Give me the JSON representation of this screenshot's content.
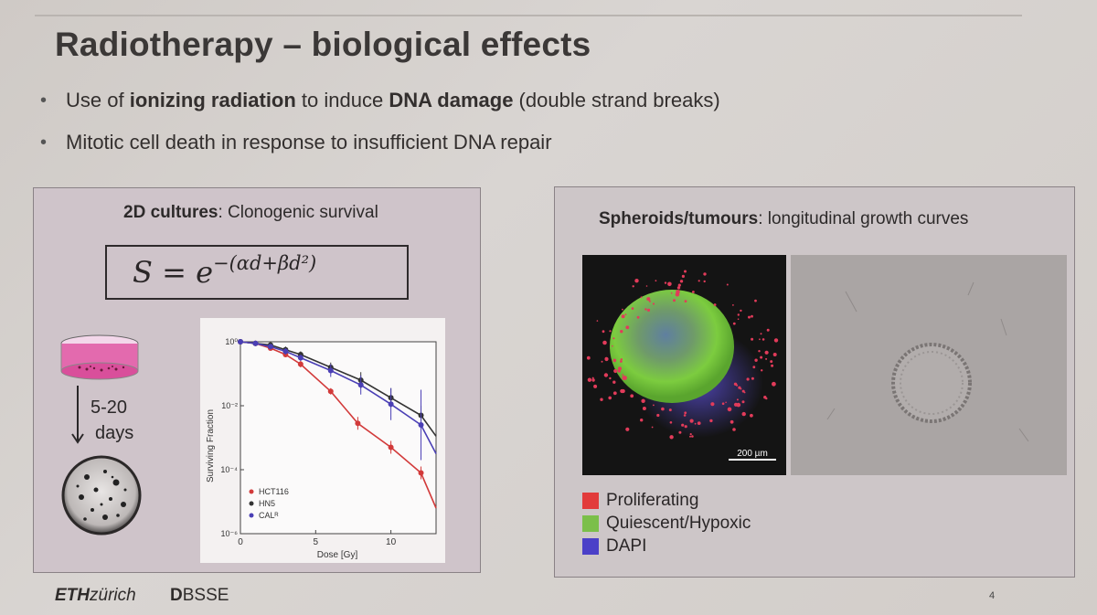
{
  "slide": {
    "title": "Radiotherapy – biological effects",
    "bullets": [
      {
        "pre": "Use of ",
        "b1": "ionizing radiation",
        "mid": " to induce ",
        "b2": "DNA damage",
        "post": " (double strand breaks)"
      },
      {
        "text": "Mitotic cell death in response to insufficient DNA repair"
      }
    ],
    "page_number": "4"
  },
  "left_panel": {
    "title_bold": "2D cultures",
    "title_rest": ": Clonogenic survival",
    "formula_lhs": "S =",
    "formula_base": "e",
    "formula_exp": "−(αd+βd²)",
    "arrow_label_line1": "5-20",
    "arrow_label_line2": "days"
  },
  "right_panel": {
    "title_bold": "Spheroids/tumours",
    "title_rest": ":  longitudinal growth curves",
    "scale_bar_label": "200 µm",
    "legend": [
      {
        "label": "Proliferating",
        "color": "#e23b3b"
      },
      {
        "label": "Quiescent/Hypoxic",
        "color": "#7bbf4a"
      },
      {
        "label": "DAPI",
        "color": "#4b40c8"
      }
    ]
  },
  "footer": {
    "eth_bold": "ETH",
    "eth_rest": "zürich",
    "dbsse_bold": "D",
    "dbsse_rest": "BSSE"
  },
  "chart_data": {
    "type": "scatter",
    "xlabel": "Dose [Gy]",
    "ylabel": "Surviving Fraction",
    "xlim": [
      0,
      13
    ],
    "ylim_log10": [
      -6,
      0
    ],
    "x_ticks": [
      {
        "v": 0,
        "label": "0"
      },
      {
        "v": 5,
        "label": "5"
      },
      {
        "v": 10,
        "label": "10"
      }
    ],
    "y_ticks": [
      {
        "p": 0,
        "label": "10⁰"
      },
      {
        "p": -2,
        "label": "10⁻²"
      },
      {
        "p": -4,
        "label": "10⁻⁴"
      },
      {
        "p": -6,
        "label": "10⁻⁶"
      }
    ],
    "legend_placement": "bottom-left",
    "series": [
      {
        "name": "HCT116",
        "color": "#d23a3a",
        "x": [
          0,
          1,
          2,
          3,
          4,
          6,
          7.8,
          10,
          12,
          14
        ],
        "log10_y": [
          0,
          -0.05,
          -0.2,
          -0.4,
          -0.7,
          -1.55,
          -2.55,
          -3.3,
          -4.1,
          -5.2
        ],
        "err": [
          0,
          0.05,
          0.05,
          0.08,
          0.1,
          0.1,
          0.2,
          0.2,
          0.2,
          0.2
        ]
      },
      {
        "name": "HN5",
        "color": "#333333",
        "x": [
          0,
          1,
          2,
          3,
          4,
          6,
          8,
          10,
          12,
          14
        ],
        "log10_y": [
          0,
          -0.05,
          -0.1,
          -0.25,
          -0.4,
          -0.8,
          -1.2,
          -1.75,
          -2.3,
          -2.95
        ],
        "err": [
          0,
          0.05,
          0.05,
          0.1,
          0.1,
          0.15,
          0.25,
          0.3,
          0.3,
          0.3
        ]
      },
      {
        "name": "CALᴿ",
        "color": "#4a3fb5",
        "x": [
          0,
          1,
          2,
          3,
          4,
          6,
          8,
          10,
          12,
          14
        ],
        "log10_y": [
          0,
          -0.05,
          -0.15,
          -0.3,
          -0.5,
          -0.9,
          -1.35,
          -1.95,
          -2.6,
          -3.5
        ],
        "err": [
          0,
          0.05,
          0.05,
          0.1,
          0.1,
          0.2,
          0.3,
          0.5,
          1.1,
          0.4
        ]
      }
    ]
  }
}
